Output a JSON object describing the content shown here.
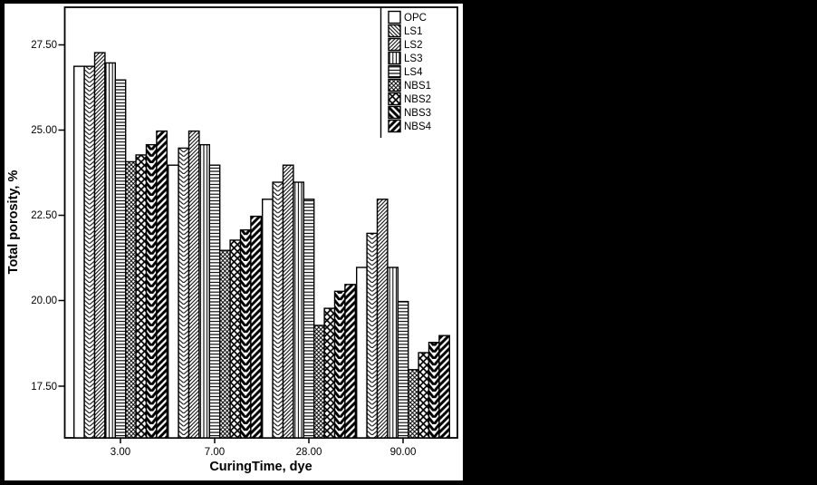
{
  "window": {
    "background": "#000000"
  },
  "figure": {
    "background": "#ffffff",
    "foreground": "#000000"
  },
  "chart_data": {
    "type": "bar",
    "title": "",
    "xlabel": "CuringTime, dye",
    "ylabel": "Total porosity, %",
    "categories": [
      "3.00",
      "7.00",
      "28.00",
      "90.00"
    ],
    "series": [
      {
        "name": "OPC",
        "pattern": "open",
        "values": [
          26.9,
          24.0,
          23.0,
          21.0
        ]
      },
      {
        "name": "LS1",
        "pattern": "backslash-hatch-fine",
        "values": [
          26.9,
          24.5,
          23.5,
          22.0
        ]
      },
      {
        "name": "LS2",
        "pattern": "slash-hatch-fine",
        "values": [
          27.3,
          25.0,
          24.0,
          23.0
        ]
      },
      {
        "name": "LS3",
        "pattern": "vertical-lines",
        "values": [
          27.0,
          24.6,
          23.5,
          21.0
        ]
      },
      {
        "name": "LS4",
        "pattern": "horizontal-lines",
        "values": [
          26.5,
          24.0,
          23.0,
          20.0
        ]
      },
      {
        "name": "NBS1",
        "pattern": "crosshatch-fine",
        "values": [
          24.1,
          21.5,
          19.3,
          18.0
        ]
      },
      {
        "name": "NBS2",
        "pattern": "crosshatch-bold",
        "values": [
          24.3,
          21.8,
          19.8,
          18.5
        ]
      },
      {
        "name": "NBS3",
        "pattern": "backslash-hatch-bold",
        "values": [
          24.6,
          22.1,
          20.3,
          18.8
        ]
      },
      {
        "name": "NBS4",
        "pattern": "slash-hatch-bold",
        "values": [
          25.0,
          22.5,
          20.5,
          19.0
        ]
      }
    ],
    "y_ticks": [
      "27.50",
      "25.00",
      "22.50",
      "20.00",
      "17.50"
    ],
    "y_tick_values": [
      27.5,
      25.0,
      22.5,
      20.0,
      17.5
    ],
    "ylim": [
      16.0,
      28.6
    ],
    "grid": false,
    "legend_position": "top-right-inside"
  }
}
